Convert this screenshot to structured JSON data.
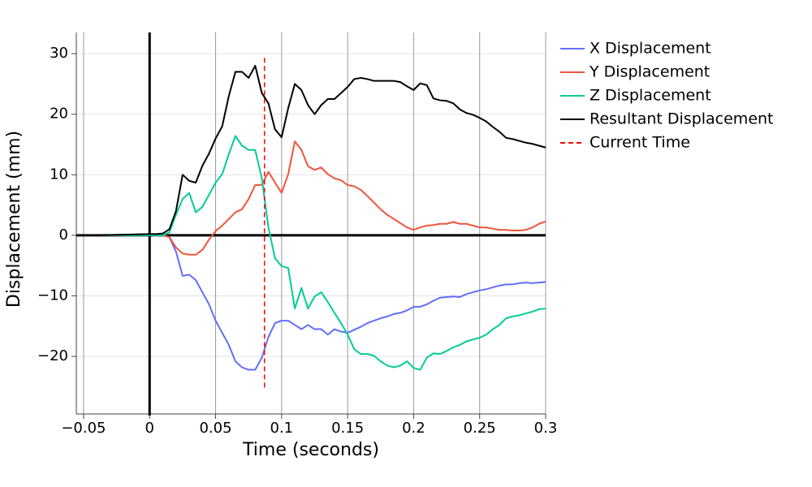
{
  "chart_data": {
    "type": "line",
    "x_label": "Time (seconds)",
    "y_label": "Displacement (mm)",
    "x": [
      -0.055,
      -0.04,
      -0.02,
      0,
      0.005,
      0.01,
      0.015,
      0.02,
      0.025,
      0.03,
      0.035,
      0.04,
      0.045,
      0.05,
      0.055,
      0.06,
      0.065,
      0.07,
      0.075,
      0.08,
      0.085,
      0.09,
      0.095,
      0.1,
      0.105,
      0.11,
      0.115,
      0.12,
      0.125,
      0.13,
      0.135,
      0.14,
      0.145,
      0.15,
      0.155,
      0.16,
      0.165,
      0.17,
      0.175,
      0.18,
      0.185,
      0.19,
      0.195,
      0.2,
      0.205,
      0.21,
      0.215,
      0.22,
      0.225,
      0.23,
      0.235,
      0.24,
      0.245,
      0.25,
      0.255,
      0.26,
      0.265,
      0.27,
      0.275,
      0.28,
      0.285,
      0.29,
      0.295,
      0.3
    ],
    "series": [
      {
        "name": "X Displacement",
        "color": "#636efa",
        "values": [
          0,
          0,
          0,
          0,
          -0.1,
          0,
          -0.3,
          -2.7,
          -6.7,
          -6.5,
          -7.4,
          -9.4,
          -11.4,
          -14.1,
          -16.1,
          -18.1,
          -20.8,
          -21.8,
          -22.2,
          -22.2,
          -20.2,
          -16.8,
          -14.5,
          -14.1,
          -14.1,
          -14.8,
          -15.5,
          -14.8,
          -15.5,
          -15.5,
          -16.4,
          -15.5,
          -15.9,
          -16.1,
          -15.6,
          -15.1,
          -14.5,
          -14.1,
          -13.7,
          -13.4,
          -13,
          -12.8,
          -12.4,
          -11.8,
          -11.8,
          -11.4,
          -10.8,
          -10.3,
          -10.2,
          -10.1,
          -10.2,
          -9.7,
          -9.4,
          -9.1,
          -8.9,
          -8.6,
          -8.3,
          -8.1,
          -8.1,
          -7.9,
          -7.8,
          -7.9,
          -7.8,
          -7.7
        ]
      },
      {
        "name": "Y Displacement",
        "color": "#ef553b",
        "values": [
          0,
          0,
          0,
          0,
          0,
          0,
          -0.3,
          -2,
          -3,
          -3.2,
          -3.2,
          -2.4,
          -0.7,
          0.7,
          1.6,
          2.7,
          3.8,
          4.3,
          6,
          8.3,
          8.3,
          10.5,
          8.7,
          7,
          10.1,
          15.5,
          14.1,
          11.4,
          10.8,
          11.2,
          10.1,
          9.4,
          9.1,
          8.3,
          8.1,
          7.5,
          6.5,
          5.4,
          4.3,
          3.4,
          2.7,
          2,
          1.3,
          0.9,
          1.3,
          1.6,
          1.7,
          1.9,
          1.9,
          2.2,
          1.9,
          1.9,
          1.6,
          1.3,
          1.3,
          1.1,
          0.9,
          0.9,
          0.8,
          0.8,
          0.9,
          1.3,
          1.9,
          2.3
        ]
      },
      {
        "name": "Z Displacement",
        "color": "#00cc96",
        "values": [
          0,
          0,
          0,
          0,
          0,
          0,
          0.5,
          3.4,
          6,
          7,
          3.8,
          4.7,
          6.7,
          8.7,
          10.1,
          13.4,
          16.4,
          14.8,
          14.1,
          14.1,
          9.4,
          1.3,
          -3.8,
          -5.1,
          -5.4,
          -12.1,
          -8.7,
          -12.1,
          -10.1,
          -9.4,
          -11,
          -12.8,
          -14.5,
          -16.4,
          -18.8,
          -19.6,
          -19.6,
          -19.9,
          -20.8,
          -21.5,
          -21.8,
          -21.5,
          -20.8,
          -21.9,
          -22.2,
          -20.2,
          -19.5,
          -19.6,
          -19.1,
          -18.5,
          -18.1,
          -17.5,
          -17.2,
          -16.9,
          -16.4,
          -15.5,
          -14.8,
          -13.7,
          -13.4,
          -13.2,
          -12.9,
          -12.6,
          -12.2,
          -12.1
        ]
      },
      {
        "name": "Resultant Displacement",
        "color": "#000000",
        "values": [
          0,
          0,
          0.1,
          0.2,
          0.2,
          0.3,
          1,
          4,
          10,
          9,
          8.7,
          11.5,
          13.5,
          16,
          18,
          23,
          27,
          27,
          26,
          28,
          23.5,
          21.8,
          17.5,
          16.2,
          21,
          25,
          24,
          21.5,
          20,
          21.5,
          22.5,
          22.5,
          23.5,
          24.5,
          25.8,
          26,
          25.8,
          25.5,
          25.5,
          25.5,
          25.5,
          25.3,
          24.6,
          24,
          25.1,
          24.8,
          22.6,
          22.3,
          22.2,
          21.8,
          20.8,
          20.2,
          19.9,
          19.4,
          18.8,
          17.9,
          17.1,
          16.1,
          15.9,
          15.6,
          15.3,
          15.1,
          14.8,
          14.5
        ]
      },
      {
        "name": "Current Time",
        "color": "#ff0000",
        "dash": true,
        "x": [
          0.087,
          0.087
        ],
        "values": [
          29.3,
          -25.3
        ]
      }
    ],
    "xlim": [
      -0.0555,
      0.3
    ],
    "ylim": [
      -29.5,
      33.5
    ],
    "xticks": [
      {
        "value": -0.05,
        "label": "−0.05"
      },
      0,
      0.05,
      0.1,
      0.15,
      0.2,
      0.25,
      0.3
    ],
    "yticks": [
      {
        "value": -20,
        "label": "−20"
      },
      {
        "value": -10,
        "label": "−10"
      },
      0,
      10,
      20,
      30
    ],
    "grid": true,
    "zerolines": true,
    "legend": "right"
  }
}
